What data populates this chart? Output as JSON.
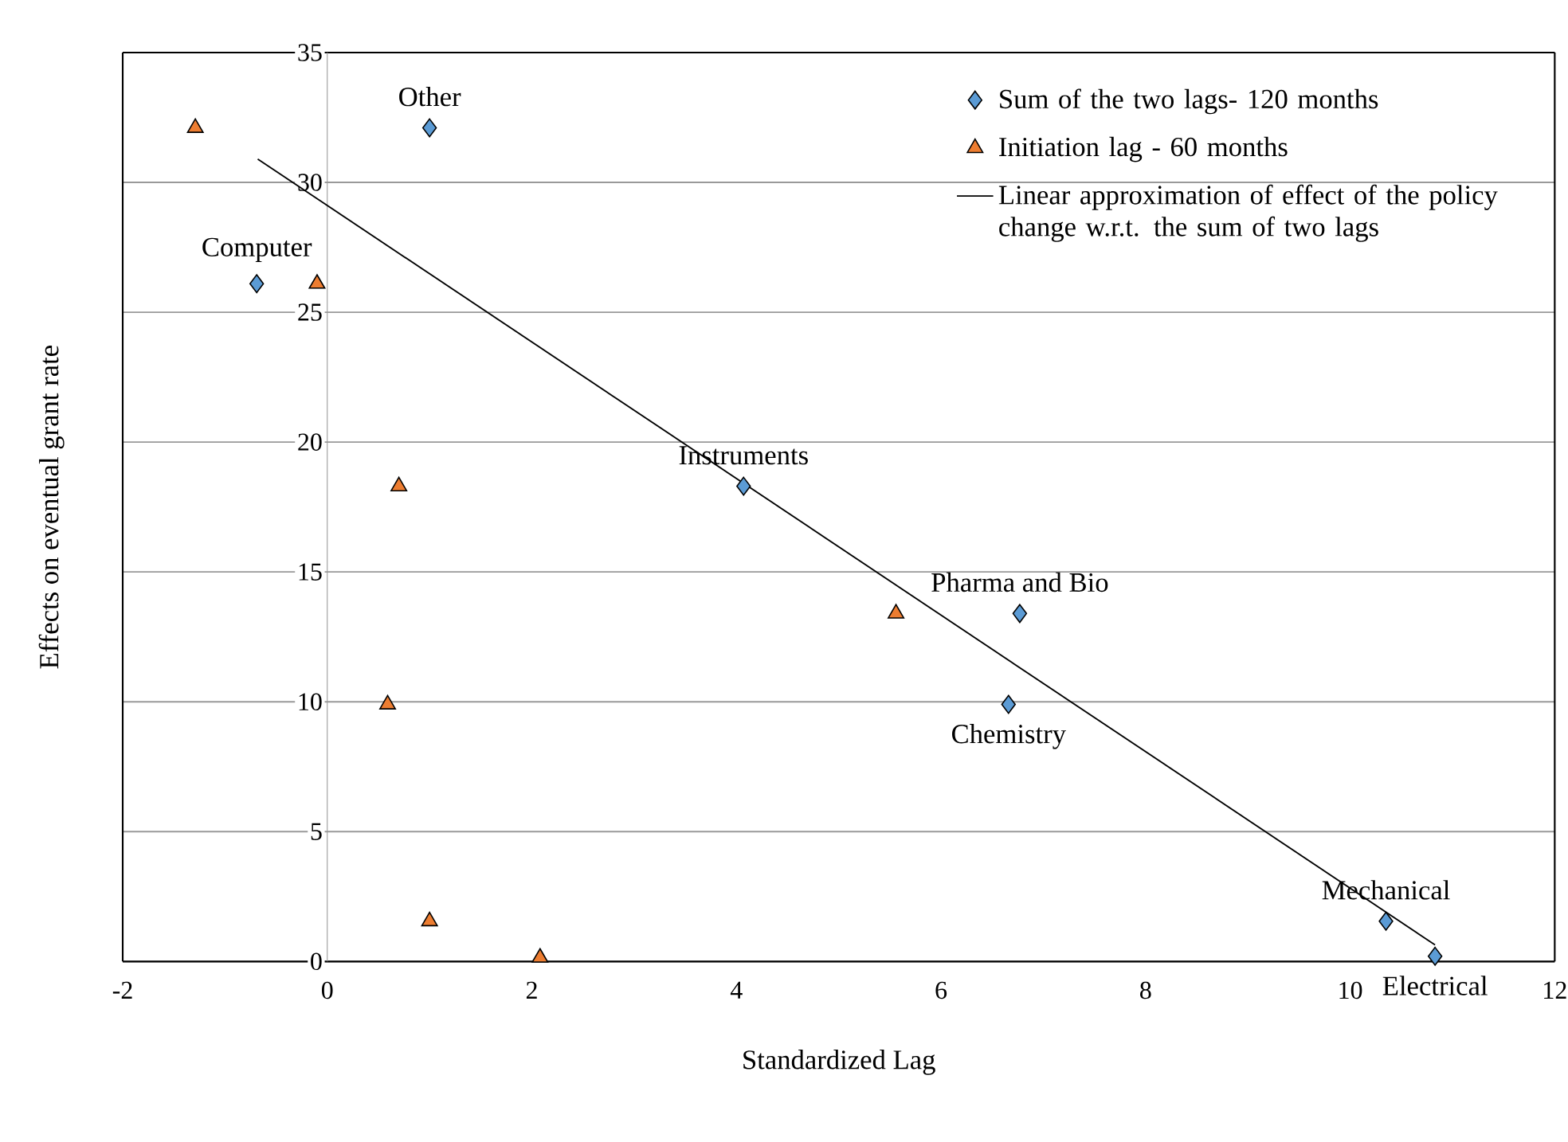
{
  "chart_data": {
    "type": "scatter",
    "xlabel": "Standardized Lag",
    "ylabel": "Effects on eventual grant rate",
    "xlim": [
      -2,
      12
    ],
    "ylim": [
      0,
      35
    ],
    "xticks": [
      -2,
      0,
      2,
      4,
      6,
      8,
      10,
      12
    ],
    "yticks": [
      0,
      5,
      10,
      15,
      20,
      25,
      30,
      35
    ],
    "grid": "y",
    "legend": "top right",
    "series": [
      {
        "name": "Sum of the two lags- 120 months",
        "color": "#5b9bd5",
        "marker": "diamond",
        "x": [
          1.0,
          -0.69,
          4.07,
          6.77,
          6.66,
          10.35,
          10.83
        ],
        "values": [
          32.1,
          26.1,
          18.3,
          13.4,
          9.9,
          1.55,
          0.2
        ]
      },
      {
        "name": "Initiation lag - 60 months",
        "color": "#ed7d31",
        "marker": "triangle",
        "x": [
          -1.29,
          -0.1,
          0.7,
          5.56,
          0.59,
          1.0,
          2.08
        ],
        "values": [
          32.1,
          26.1,
          18.3,
          13.4,
          9.9,
          1.55,
          0.15
        ]
      },
      {
        "name": "Linear approximation of effect of the policy change w.r.t. the sum of two lags",
        "type": "line",
        "color": "#000000",
        "marker": "none",
        "x": [
          -0.68,
          10.83
        ],
        "values": [
          30.9,
          0.64
        ]
      }
    ],
    "annotations": [
      {
        "text": "Other",
        "x": 1.0,
        "y": 32.1
      },
      {
        "text": "Computer",
        "x": -0.69,
        "y": 26.1
      },
      {
        "text": "Instruments",
        "x": 4.07,
        "y": 18.3
      },
      {
        "text": "Pharma and Bio",
        "x": 6.77,
        "y": 13.4
      },
      {
        "text": "Chemistry",
        "x": 6.66,
        "y": 9.9
      },
      {
        "text": "Mechanical",
        "x": 10.35,
        "y": 1.55
      },
      {
        "text": "Electrical",
        "x": 10.83,
        "y": 0.2
      }
    ]
  }
}
